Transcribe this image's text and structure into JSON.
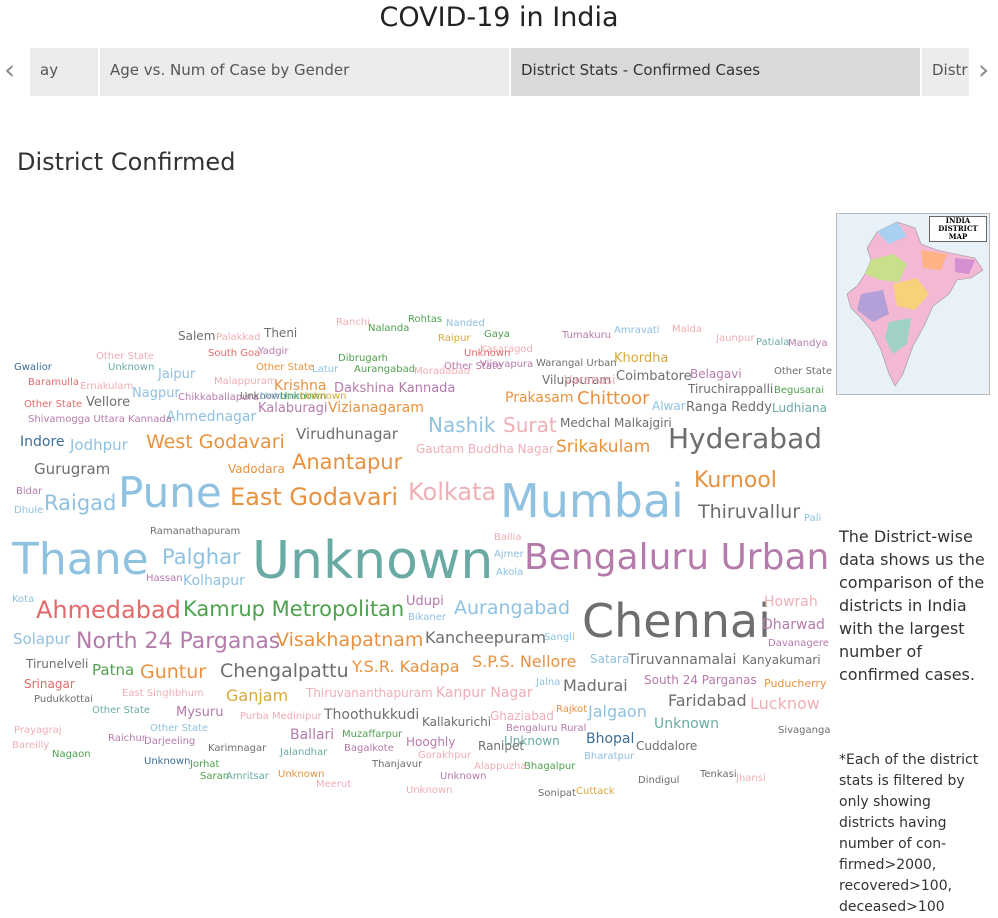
{
  "title": "COVID-19 in India",
  "tabs": [
    {
      "label": "ay"
    },
    {
      "label": "Age vs. Num of Case by Gender"
    },
    {
      "label": "District Stats - Confirmed Cases"
    },
    {
      "label": "Distr"
    }
  ],
  "section_title": "District Confirmed",
  "map": {
    "label_line1": "INDIA",
    "label_line2": "DISTRICT MAP"
  },
  "description": "The District-wise data shows us the comparison of the districts in India with the largest number of confirmed cases.",
  "note": "*Each of the district stats is filtered by only showing districts having number of con-firmed>2000, recovered>100, deceased>100",
  "palette": {
    "blue": "#8fc1e0",
    "teal": "#6aaaa4",
    "purple": "#b57bab",
    "grey": "#6e6e6e",
    "dark": "#333333",
    "orange": "#e8923f",
    "pink": "#f0aeb5",
    "green": "#4fa14f",
    "red": "#e36a6a",
    "gold": "#d8a93a",
    "navy": "#3b6f99"
  },
  "words": [
    {
      "t": "Unknown",
      "c": "teal",
      "s": 52
    },
    {
      "t": "Chennai",
      "c": "grey",
      "s": 46
    },
    {
      "t": "Mumbai",
      "c": "blue",
      "s": 46
    },
    {
      "t": "Thane",
      "c": "blue",
      "s": 44
    },
    {
      "t": "Pune",
      "c": "blue",
      "s": 42
    },
    {
      "t": "Bengaluru Urban",
      "c": "purple",
      "s": 36
    },
    {
      "t": "Hyderabad",
      "c": "grey",
      "s": 28
    },
    {
      "t": "Kolkata",
      "c": "pink",
      "s": 24
    },
    {
      "t": "East Godavari",
      "c": "orange",
      "s": 24
    },
    {
      "t": "Ahmedabad",
      "c": "red",
      "s": 24
    },
    {
      "t": "Kurnool",
      "c": "orange",
      "s": 22
    },
    {
      "t": "North 24 Parganas",
      "c": "purple",
      "s": 22
    },
    {
      "t": "Raigad",
      "c": "blue",
      "s": 21
    },
    {
      "t": "Palghar",
      "c": "blue",
      "s": 21
    },
    {
      "t": "Kamrup Metropolitan",
      "c": "green",
      "s": 21
    },
    {
      "t": "Anantapur",
      "c": "orange",
      "s": 21
    },
    {
      "t": "Nashik",
      "c": "blue",
      "s": 20
    },
    {
      "t": "Surat",
      "c": "pink",
      "s": 20
    },
    {
      "t": "Aurangabad",
      "c": "blue",
      "s": 19
    },
    {
      "t": "West Godavari",
      "c": "orange",
      "s": 19
    },
    {
      "t": "Thiruvallur",
      "c": "grey",
      "s": 19
    },
    {
      "t": "Visakhapatnam",
      "c": "orange",
      "s": 19
    },
    {
      "t": "Chengalpattu",
      "c": "grey",
      "s": 19
    },
    {
      "t": "Guntur",
      "c": "orange",
      "s": 19
    },
    {
      "t": "Chittoor",
      "c": "orange",
      "s": 18
    },
    {
      "t": "Srikakulam",
      "c": "orange",
      "s": 17
    },
    {
      "t": "Kancheepuram",
      "c": "grey",
      "s": 16
    },
    {
      "t": "Y.S.R. Kadapa",
      "c": "orange",
      "s": 16
    },
    {
      "t": "S.P.S. Nellore",
      "c": "orange",
      "s": 16
    },
    {
      "t": "Madurai",
      "c": "grey",
      "s": 16
    },
    {
      "t": "Jalgaon",
      "c": "blue",
      "s": 16
    },
    {
      "t": "Faridabad",
      "c": "grey",
      "s": 16
    },
    {
      "t": "Lucknow",
      "c": "pink",
      "s": 16
    },
    {
      "t": "Ganjam",
      "c": "gold",
      "s": 16
    },
    {
      "t": "Virudhunagar",
      "c": "grey",
      "s": 15
    },
    {
      "t": "Gurugram",
      "c": "grey",
      "s": 15
    },
    {
      "t": "Jodhpur",
      "c": "blue",
      "s": 15
    },
    {
      "t": "Solapur",
      "c": "blue",
      "s": 15
    },
    {
      "t": "Patna",
      "c": "green",
      "s": 15
    },
    {
      "t": "Kolhapur",
      "c": "blue",
      "s": 14
    },
    {
      "t": "Krishna",
      "c": "orange",
      "s": 14
    },
    {
      "t": "Vizianagaram",
      "c": "orange",
      "s": 14
    },
    {
      "t": "Prakasam",
      "c": "orange",
      "s": 14
    },
    {
      "t": "Ahmednagar",
      "c": "blue",
      "s": 14
    },
    {
      "t": "Ballari",
      "c": "purple",
      "s": 14
    },
    {
      "t": "Indore",
      "c": "navy",
      "s": 14
    },
    {
      "t": "Thoothukkudi",
      "c": "grey",
      "s": 14
    },
    {
      "t": "Tiruvannamalai",
      "c": "grey",
      "s": 14
    },
    {
      "t": "Kanpur Nagar",
      "c": "pink",
      "s": 14
    },
    {
      "t": "Dharwad",
      "c": "purple",
      "s": 14
    },
    {
      "t": "Howrah",
      "c": "pink",
      "s": 14
    },
    {
      "t": "Unknown",
      "c": "teal",
      "s": 14
    },
    {
      "t": "Bhopal",
      "c": "navy",
      "s": 14
    },
    {
      "t": "Khordha",
      "c": "gold",
      "s": 13
    },
    {
      "t": "Jaipur",
      "c": "blue",
      "s": 13
    },
    {
      "t": "Nagpur",
      "c": "blue",
      "s": 13
    },
    {
      "t": "Dakshina Kannada",
      "c": "purple",
      "s": 13
    },
    {
      "t": "Coimbatore",
      "c": "grey",
      "s": 13
    },
    {
      "t": "Vellore",
      "c": "grey",
      "s": 13
    },
    {
      "t": "Kalaburagi",
      "c": "purple",
      "s": 13
    },
    {
      "t": "Udupi",
      "c": "purple",
      "s": 13
    },
    {
      "t": "Ranga Reddy",
      "c": "grey",
      "s": 13
    },
    {
      "t": "Mysuru",
      "c": "purple",
      "s": 13
    },
    {
      "t": "Kanyakumari",
      "c": "grey",
      "s": 12
    },
    {
      "t": "Viluppuram",
      "c": "grey",
      "s": 12
    },
    {
      "t": "Tiruchirappalli",
      "c": "grey",
      "s": 12
    },
    {
      "t": "Belagavi",
      "c": "purple",
      "s": 12
    },
    {
      "t": "Ludhiana",
      "c": "teal",
      "s": 12
    },
    {
      "t": "Alwar",
      "c": "blue",
      "s": 12
    },
    {
      "t": "Salem",
      "c": "grey",
      "s": 12
    },
    {
      "t": "Theni",
      "c": "grey",
      "s": 12
    },
    {
      "t": "Tirunelveli",
      "c": "grey",
      "s": 12
    },
    {
      "t": "Srinagar",
      "c": "red",
      "s": 12
    },
    {
      "t": "Satara",
      "c": "blue",
      "s": 12
    },
    {
      "t": "South 24 Parganas",
      "c": "purple",
      "s": 12
    },
    {
      "t": "Puducherry",
      "c": "orange",
      "s": 11
    },
    {
      "t": "Thiruvananthapuram",
      "c": "pink",
      "s": 12
    },
    {
      "t": "Ghaziabad",
      "c": "pink",
      "s": 12
    },
    {
      "t": "Kallakurichi",
      "c": "grey",
      "s": 12
    },
    {
      "t": "Hooghly",
      "c": "purple",
      "s": 12
    },
    {
      "t": "Ranipet",
      "c": "grey",
      "s": 12
    },
    {
      "t": "Cuddalore",
      "c": "grey",
      "s": 12
    },
    {
      "t": "Medchal Malkajgiri",
      "c": "grey",
      "s": 12
    },
    {
      "t": "Gautam Buddha Nagar",
      "c": "pink",
      "s": 12
    },
    {
      "t": "Unknown",
      "c": "teal",
      "s": 12
    },
    {
      "t": "Vadodara",
      "c": "orange",
      "s": 12
    },
    {
      "t": "Chikkaballapura",
      "c": "purple",
      "s": 10
    },
    {
      "t": "Shivamogga Uttara Kannada",
      "c": "purple",
      "s": 10
    },
    {
      "t": "Malappuram",
      "c": "pink",
      "s": 10
    },
    {
      "t": "Ramanathapuram",
      "c": "grey",
      "s": 10
    },
    {
      "t": "Sangli",
      "c": "blue",
      "s": 10
    },
    {
      "t": "Davanagere",
      "c": "purple",
      "s": 10
    },
    {
      "t": "Jalna",
      "c": "blue",
      "s": 10
    },
    {
      "t": "Ajmer",
      "c": "blue",
      "s": 10
    },
    {
      "t": "Akola",
      "c": "blue",
      "s": 10
    },
    {
      "t": "Ballia",
      "c": "pink",
      "s": 10
    },
    {
      "t": "Hassan",
      "c": "purple",
      "s": 10
    },
    {
      "t": "Kota",
      "c": "blue",
      "s": 10
    },
    {
      "t": "Bidar",
      "c": "purple",
      "s": 10
    },
    {
      "t": "Dhule",
      "c": "blue",
      "s": 10
    },
    {
      "t": "Pali",
      "c": "blue",
      "s": 10
    },
    {
      "t": "Bikaner",
      "c": "blue",
      "s": 10
    },
    {
      "t": "Rajkot",
      "c": "orange",
      "s": 10
    },
    {
      "t": "Bengaluru Rural",
      "c": "purple",
      "s": 10
    },
    {
      "t": "Pudukkottai",
      "c": "grey",
      "s": 10
    },
    {
      "t": "East Singhbhum",
      "c": "pink",
      "s": 10
    },
    {
      "t": "Purba Medinipur",
      "c": "pink",
      "s": 10
    },
    {
      "t": "Gorakhpur",
      "c": "pink",
      "s": 10
    },
    {
      "t": "Bharatpur",
      "c": "blue",
      "s": 10
    },
    {
      "t": "Bhagalpur",
      "c": "green",
      "s": 10
    },
    {
      "t": "Alappuzha",
      "c": "pink",
      "s": 10
    },
    {
      "t": "Muzaffarpur",
      "c": "green",
      "s": 10
    },
    {
      "t": "Bagalkote",
      "c": "purple",
      "s": 10
    },
    {
      "t": "Jalandhar",
      "c": "teal",
      "s": 10
    },
    {
      "t": "Karimnagar",
      "c": "grey",
      "s": 10
    },
    {
      "t": "Darjeeling",
      "c": "purple",
      "s": 10
    },
    {
      "t": "Raichur",
      "c": "purple",
      "s": 10
    },
    {
      "t": "Prayagraj",
      "c": "pink",
      "s": 10
    },
    {
      "t": "Bareilly",
      "c": "pink",
      "s": 10
    },
    {
      "t": "Nagaon",
      "c": "green",
      "s": 10
    },
    {
      "t": "Jorhat",
      "c": "green",
      "s": 10
    },
    {
      "t": "Saran",
      "c": "green",
      "s": 10
    },
    {
      "t": "Amritsar",
      "c": "teal",
      "s": 10
    },
    {
      "t": "Thanjavur",
      "c": "grey",
      "s": 10
    },
    {
      "t": "Meerut",
      "c": "pink",
      "s": 10
    },
    {
      "t": "Sonipat",
      "c": "grey",
      "s": 10
    },
    {
      "t": "Cuttack",
      "c": "gold",
      "s": 10
    },
    {
      "t": "Dindigul",
      "c": "grey",
      "s": 10
    },
    {
      "t": "Tenkasi",
      "c": "grey",
      "s": 10
    },
    {
      "t": "Jhansi",
      "c": "pink",
      "s": 10
    },
    {
      "t": "Sivaganga",
      "c": "grey",
      "s": 10
    },
    {
      "t": "Gwalior",
      "c": "navy",
      "s": 10
    },
    {
      "t": "Baramulla",
      "c": "red",
      "s": 10
    },
    {
      "t": "Ernakulam",
      "c": "pink",
      "s": 10
    },
    {
      "t": "South Goa",
      "c": "red",
      "s": 10
    },
    {
      "t": "Yadgir",
      "c": "purple",
      "s": 10
    },
    {
      "t": "Latur",
      "c": "blue",
      "s": 10
    },
    {
      "t": "Dibrugarh",
      "c": "green",
      "s": 10
    },
    {
      "t": "Aurangabad",
      "c": "green",
      "s": 10
    },
    {
      "t": "Moradabad",
      "c": "pink",
      "s": 10
    },
    {
      "t": "Kasaragod",
      "c": "pink",
      "s": 10
    },
    {
      "t": "Vijayapura",
      "c": "purple",
      "s": 10
    },
    {
      "t": "Warangal Urban",
      "c": "grey",
      "s": 10
    },
    {
      "t": "Varanasi",
      "c": "pink",
      "s": 12
    },
    {
      "t": "Tumakuru",
      "c": "purple",
      "s": 10
    },
    {
      "t": "Amravati",
      "c": "blue",
      "s": 10
    },
    {
      "t": "Malda",
      "c": "pink",
      "s": 10
    },
    {
      "t": "Jaunpur",
      "c": "pink",
      "s": 10
    },
    {
      "t": "Patiala",
      "c": "teal",
      "s": 10
    },
    {
      "t": "Mandya",
      "c": "purple",
      "s": 10
    },
    {
      "t": "Begusarai",
      "c": "green",
      "s": 10
    },
    {
      "t": "Palakkad",
      "c": "pink",
      "s": 10
    },
    {
      "t": "Ranchi",
      "c": "pink",
      "s": 10
    },
    {
      "t": "Nalanda",
      "c": "green",
      "s": 10
    },
    {
      "t": "Rohtas",
      "c": "green",
      "s": 10
    },
    {
      "t": "Nanded",
      "c": "blue",
      "s": 10
    },
    {
      "t": "Gaya",
      "c": "green",
      "s": 10
    },
    {
      "t": "Raipur",
      "c": "gold",
      "s": 10
    },
    {
      "t": "Other State",
      "c": "purple",
      "s": 10
    },
    {
      "t": "Other State",
      "c": "orange",
      "s": 10
    },
    {
      "t": "Other State",
      "c": "red",
      "s": 10
    },
    {
      "t": "Other State",
      "c": "teal",
      "s": 10
    },
    {
      "t": "Other State",
      "c": "blue",
      "s": 10
    },
    {
      "t": "Other State",
      "c": "grey",
      "s": 10
    },
    {
      "t": "Other State",
      "c": "pink",
      "s": 10
    },
    {
      "t": "Unknown",
      "c": "teal",
      "s": 10
    },
    {
      "t": "Unknown",
      "c": "purple",
      "s": 10
    },
    {
      "t": "Unknown",
      "c": "orange",
      "s": 10
    },
    {
      "t": "Unknown",
      "c": "navy",
      "s": 10
    },
    {
      "t": "Unknown",
      "c": "red",
      "s": 10
    },
    {
      "t": "Unknown",
      "c": "pink",
      "s": 10
    },
    {
      "t": "Unknown",
      "c": "grey",
      "s": 10
    },
    {
      "t": "Unknown",
      "c": "blue",
      "s": 10
    },
    {
      "t": "Unknown",
      "c": "green",
      "s": 10
    },
    {
      "t": "Unknown",
      "c": "gold",
      "s": 10
    }
  ]
}
